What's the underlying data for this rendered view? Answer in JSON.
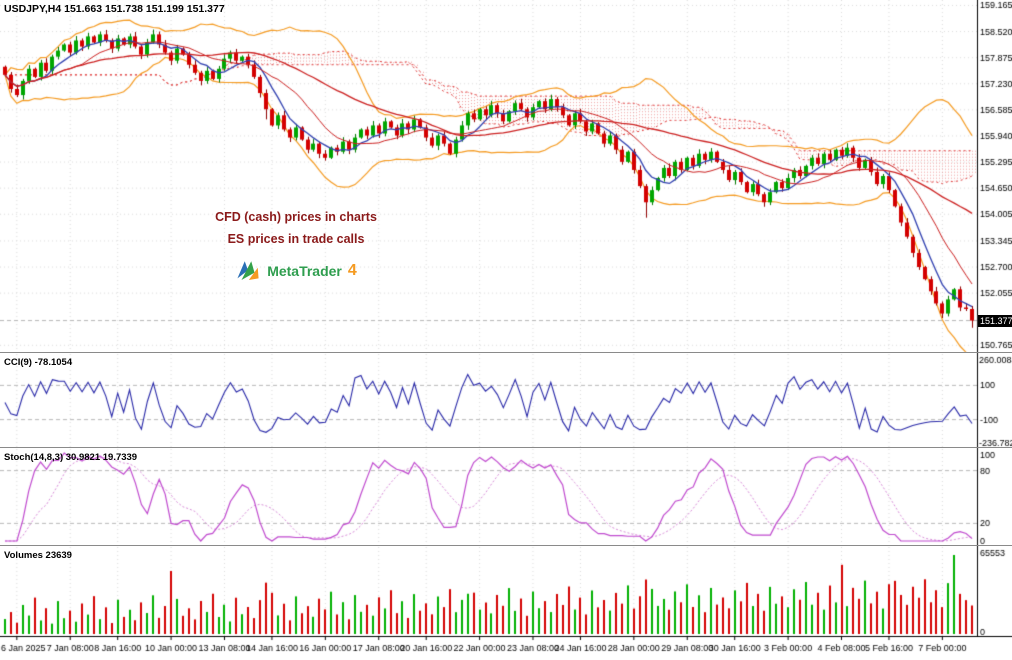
{
  "window": {
    "title": "USDJPY,H4"
  },
  "chart_data": {
    "type": "candlestick-multi-pane",
    "symbol_label": "USDJPY,H4 151.663 151.738 151.199 151.377",
    "ohlc": {
      "open": 151.663,
      "high": 151.738,
      "low": 151.199,
      "close": 151.377
    },
    "main": {
      "ylim": [
        150.6,
        159.3
      ],
      "price_axis_labels": [
        "159.165",
        "158.520",
        "157.875",
        "157.230",
        "156.585",
        "155.940",
        "155.295",
        "154.650",
        "154.005",
        "153.345",
        "152.700",
        "152.055",
        "150.765"
      ],
      "price_axis_values": [
        159.165,
        158.52,
        157.875,
        157.23,
        156.585,
        155.94,
        155.295,
        154.65,
        154.005,
        153.345,
        152.7,
        152.055,
        150.765
      ],
      "current_price": "151.377",
      "current_price_value": 151.377,
      "annotation_line1": "CFD (cash) prices in charts",
      "annotation_line2": "ES prices in trade calls",
      "logo_text": "MetaTrader",
      "logo_number": "4",
      "closes": [
        157.45,
        157.1,
        156.95,
        157.3,
        157.6,
        157.4,
        157.75,
        157.55,
        157.9,
        158.05,
        158.2,
        158.0,
        158.3,
        158.15,
        158.4,
        158.25,
        158.45,
        158.3,
        158.1,
        158.35,
        158.2,
        158.4,
        158.15,
        157.95,
        158.25,
        158.45,
        158.2,
        158.0,
        157.8,
        158.1,
        157.95,
        157.7,
        157.5,
        157.3,
        157.55,
        157.35,
        157.6,
        157.85,
        158.0,
        157.8,
        157.9,
        157.7,
        157.4,
        157.0,
        156.6,
        156.2,
        156.45,
        156.1,
        155.9,
        156.15,
        155.85,
        155.6,
        155.75,
        155.5,
        155.4,
        155.65,
        155.55,
        155.8,
        155.6,
        155.9,
        156.1,
        155.95,
        156.2,
        156.0,
        156.3,
        156.15,
        155.95,
        156.25,
        156.1,
        156.35,
        156.15,
        155.9,
        155.7,
        155.95,
        155.75,
        155.5,
        155.85,
        156.2,
        156.5,
        156.35,
        156.6,
        156.45,
        156.7,
        156.5,
        156.3,
        156.55,
        156.75,
        156.6,
        156.4,
        156.65,
        156.8,
        156.6,
        156.85,
        156.65,
        156.45,
        156.2,
        156.5,
        156.3,
        156.05,
        156.25,
        156.0,
        155.75,
        155.95,
        155.6,
        155.3,
        155.55,
        155.1,
        154.7,
        154.3,
        154.6,
        154.9,
        155.15,
        154.95,
        155.3,
        155.1,
        155.4,
        155.2,
        155.5,
        155.35,
        155.55,
        155.3,
        155.1,
        154.85,
        155.05,
        154.8,
        154.55,
        154.75,
        154.5,
        154.3,
        154.55,
        154.8,
        154.65,
        154.9,
        155.1,
        154.95,
        155.2,
        155.4,
        155.25,
        155.5,
        155.35,
        155.6,
        155.45,
        155.65,
        155.4,
        155.15,
        155.35,
        155.05,
        154.75,
        154.95,
        154.6,
        154.2,
        153.8,
        153.45,
        153.05,
        152.7,
        152.4,
        152.1,
        151.8,
        151.55,
        151.9,
        152.15,
        151.7,
        151.663,
        151.377
      ]
    },
    "time_axis": {
      "labels": [
        "6 Jan 2025",
        "7 Jan 08:00",
        "8 Jan 16:00",
        "10 Jan 00:00",
        "13 Jan 08:00",
        "14 Jan 16:00",
        "16 Jan 00:00",
        "17 Jan 08:00",
        "20 Jan 16:00",
        "22 Jan 00:00",
        "23 Jan 08:00",
        "24 Jan 16:00",
        "28 Jan 00:00",
        "29 Jan 08:00",
        "30 Jan 16:00",
        "3 Feb 00:00",
        "4 Feb 08:00",
        "5 Feb 16:00",
        "7 Feb 00:00"
      ]
    },
    "cci": {
      "label": "CCI(9) -78.1054",
      "last_value": -78.1054,
      "axis_labels": [
        "260.0084",
        "100",
        "-100",
        "-236.7829"
      ],
      "levels": [
        100,
        -100
      ],
      "scale": [
        -236.7829,
        260.0084
      ]
    },
    "stoch": {
      "label": "Stoch(14,8,3) 30.9821 19.7339",
      "last_values": [
        30.9821,
        19.7339
      ],
      "axis_labels": [
        "100",
        "80",
        "20",
        "0"
      ],
      "levels": [
        20,
        80
      ],
      "scale": [
        0,
        100
      ]
    },
    "volumes": {
      "label": "Volumes 23639",
      "last_value": 23639,
      "axis_top": "65553",
      "axis_bottom": "0",
      "max": 65553,
      "values": [
        12400,
        18200,
        9400,
        24100,
        15300,
        30200,
        11200,
        21400,
        8600,
        27300,
        13100,
        19400,
        10200,
        25300,
        16100,
        31400,
        12300,
        22100,
        9100,
        28400,
        14200,
        20100,
        11400,
        26200,
        17400,
        32100,
        13400,
        23200,
        52300,
        29100,
        15100,
        21300,
        12100,
        27400,
        18300,
        33400,
        14100,
        24300,
        10400,
        30100,
        16400,
        22400,
        13200,
        28100,
        42600,
        34200,
        15400,
        25100,
        11300,
        31200,
        17200,
        23100,
        14300,
        29300,
        20400,
        35100,
        16200,
        26400,
        12200,
        32300,
        18400,
        24200,
        15200,
        30400,
        21200,
        36300,
        17300,
        27200,
        13300,
        33100,
        19300,
        25400,
        16300,
        31100,
        22300,
        37200,
        18100,
        28300,
        33400,
        34300,
        20200,
        26100,
        17100,
        32400,
        23400,
        38100,
        19200,
        29400,
        15100,
        35200,
        21400,
        27300,
        18200,
        33200,
        24100,
        39400,
        20300,
        30200,
        16200,
        36100,
        22100,
        28200,
        19400,
        34100,
        25200,
        40300,
        21100,
        31300,
        45200,
        37400,
        23300,
        29100,
        20100,
        35300,
        26300,
        41200,
        22400,
        32100,
        18100,
        38200,
        24400,
        30300,
        21300,
        36200,
        27100,
        42400,
        23200,
        33300,
        19300,
        39100,
        25100,
        31200,
        22200,
        37100,
        28400,
        43100,
        24300,
        34200,
        20200,
        40200,
        26200,
        57400,
        23100,
        38300,
        29200,
        44300,
        25400,
        35100,
        21100,
        41300,
        44100,
        32400,
        24200,
        39200,
        30100,
        45400,
        26300,
        36300,
        22300,
        42200,
        65553,
        33300,
        28100,
        23639
      ]
    },
    "colors": {
      "candle_up": "#00A600",
      "candle_down": "#D40000",
      "wick_up": "#007a00",
      "wick_down": "#8f0000",
      "ma_fast_blue": "#3040B0",
      "ma_slow_red": "#CC2020",
      "bands_orange": "#F59B22",
      "cloud_red": "#E04040",
      "cci_line": "#2828A8",
      "stoch_line": "#C04ACF",
      "stoch_signal": "#D98CD9",
      "vol_up": "#00B000",
      "vol_down": "#D40000",
      "grid": "#DCDCDC",
      "badge_bg": "#000000",
      "annotation": "#8B1A1A"
    }
  }
}
